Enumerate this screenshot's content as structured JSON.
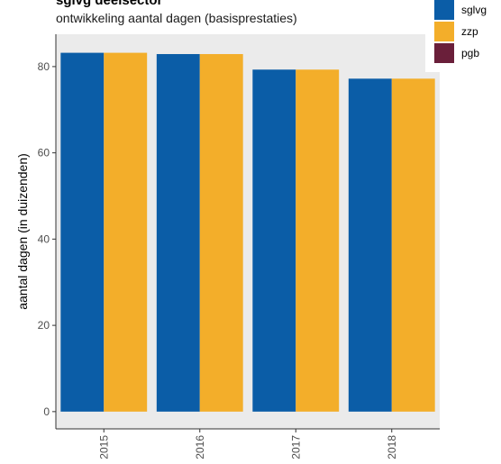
{
  "chart_data": {
    "type": "bar",
    "title": "sglvg deelsector",
    "subtitle": "ontwikkeling aantal dagen (basisprestaties)",
    "xlabel": "",
    "ylabel": "aantal dagen (in duizenden)",
    "categories": [
      "2015",
      "2016",
      "2017",
      "2018"
    ],
    "series": [
      {
        "name": "sglvg",
        "color": "#0B5DA7",
        "values": [
          83.2,
          82.9,
          79.3,
          77.2
        ]
      },
      {
        "name": "zzp",
        "color": "#F3AE2A",
        "values": [
          83.2,
          82.9,
          79.3,
          77.2
        ]
      },
      {
        "name": "pgb",
        "color": "#6A1F3A",
        "values": [
          0,
          0,
          0,
          0
        ]
      }
    ],
    "ylim": [
      -4,
      87.5
    ],
    "yticks": [
      0,
      20,
      40,
      60,
      80
    ],
    "grid": false,
    "panel_background": "#EBEBEB",
    "legend_position": "top-right"
  }
}
